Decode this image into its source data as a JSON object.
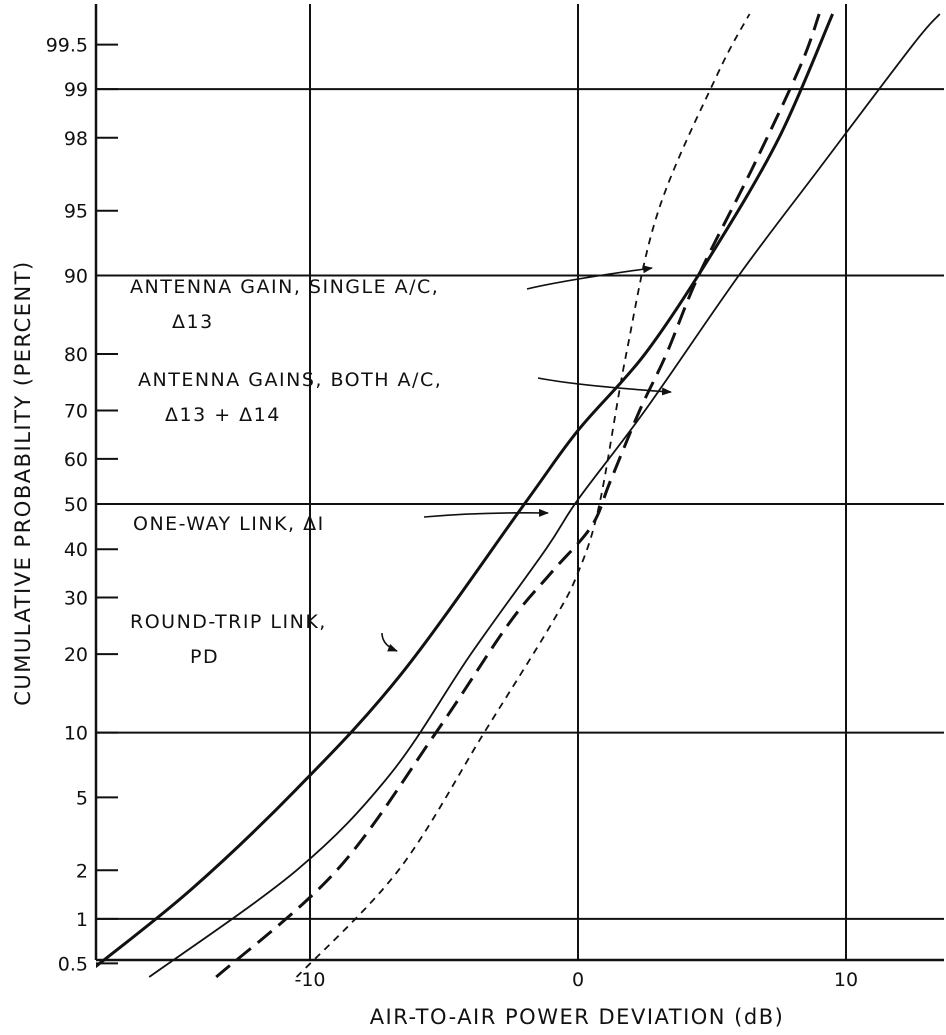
{
  "chart_data": {
    "type": "line",
    "title": "",
    "xlabel": "AIR-TO-AIR POWER DEVIATION (dB)",
    "ylabel": "CUMULATIVE PROBABILITY (PERCENT)",
    "y_scale": "normal-probability",
    "xlim": [
      -18.5,
      13.8
    ],
    "ylim": [
      0.4,
      99.7
    ],
    "grid": true,
    "x_ticks": [
      {
        "value": -10,
        "label": "-10"
      },
      {
        "value": 0,
        "label": "0"
      },
      {
        "value": 10,
        "label": "10"
      }
    ],
    "y_ticks": [
      {
        "value": 0.5,
        "label": "0.5"
      },
      {
        "value": 1,
        "label": "1"
      },
      {
        "value": 2,
        "label": "2"
      },
      {
        "value": 5,
        "label": "5"
      },
      {
        "value": 10,
        "label": "10"
      },
      {
        "value": 20,
        "label": "20"
      },
      {
        "value": 30,
        "label": "30"
      },
      {
        "value": 40,
        "label": "40"
      },
      {
        "value": 50,
        "label": "50"
      },
      {
        "value": 60,
        "label": "60"
      },
      {
        "value": 70,
        "label": "70"
      },
      {
        "value": 80,
        "label": "80"
      },
      {
        "value": 90,
        "label": "90"
      },
      {
        "value": 95,
        "label": "95"
      },
      {
        "value": 98,
        "label": "98"
      },
      {
        "value": 99,
        "label": "99"
      },
      {
        "value": 99.5,
        "label": "99.5"
      }
    ],
    "x_gridlines": [
      -10,
      0,
      10
    ],
    "y_gridlines": [
      1,
      10,
      50,
      90,
      99
    ],
    "series": [
      {
        "style": "thin-dashed",
        "points": [
          {
            "x": -10.5,
            "y": 0.4
          },
          {
            "x": -6.7,
            "y": 2
          },
          {
            "x": -3.5,
            "y": 10
          },
          {
            "x": -1.0,
            "y": 25
          },
          {
            "x": 0.0,
            "y": 35
          },
          {
            "x": 0.8,
            "y": 50
          },
          {
            "x": 1.8,
            "y": 80
          },
          {
            "x": 3.0,
            "y": 95
          },
          {
            "x": 5.2,
            "y": 99.2
          },
          {
            "x": 6.4,
            "y": 99.7
          }
        ]
      },
      {
        "style": "thick-dashed",
        "points": [
          {
            "x": -13.5,
            "y": 0.4
          },
          {
            "x": -9.0,
            "y": 2
          },
          {
            "x": -5.3,
            "y": 10
          },
          {
            "x": -2.6,
            "y": 25
          },
          {
            "x": -1.0,
            "y": 35
          },
          {
            "x": 0.5,
            "y": 45
          },
          {
            "x": 1.2,
            "y": 55
          },
          {
            "x": 2.3,
            "y": 70
          },
          {
            "x": 3.3,
            "y": 80
          },
          {
            "x": 4.5,
            "y": 90
          },
          {
            "x": 6.5,
            "y": 97
          },
          {
            "x": 8.3,
            "y": 99.3
          },
          {
            "x": 9.0,
            "y": 99.7
          }
        ]
      },
      {
        "style": "thin-solid",
        "points": [
          {
            "x": -16.0,
            "y": 0.4
          },
          {
            "x": -10.5,
            "y": 2
          },
          {
            "x": -7.0,
            "y": 6.5
          },
          {
            "x": -4.0,
            "y": 20
          },
          {
            "x": -1.2,
            "y": 40
          },
          {
            "x": 0.0,
            "y": 51
          },
          {
            "x": 2.5,
            "y": 70
          },
          {
            "x": 6.0,
            "y": 90
          },
          {
            "x": 9.0,
            "y": 97
          },
          {
            "x": 12.5,
            "y": 99.5
          },
          {
            "x": 13.5,
            "y": 99.7
          }
        ]
      },
      {
        "style": "thick-solid",
        "points": [
          {
            "x": -18.5,
            "y": 0.4
          },
          {
            "x": -14.5,
            "y": 1.5
          },
          {
            "x": -10.5,
            "y": 5.5
          },
          {
            "x": -6.6,
            "y": 17
          },
          {
            "x": -2.0,
            "y": 50
          },
          {
            "x": 0.0,
            "y": 66
          },
          {
            "x": 2.5,
            "y": 80
          },
          {
            "x": 5.0,
            "y": 92
          },
          {
            "x": 7.5,
            "y": 98
          },
          {
            "x": 9.5,
            "y": 99.7
          }
        ]
      }
    ],
    "annotations": [
      {
        "lines": [
          "ANTENNA GAIN, SINGLE A/C,",
          "Δ13"
        ]
      },
      {
        "lines": [
          "ANTENNA GAINS, BOTH A/C,",
          "Δ13 + Δ14"
        ]
      },
      {
        "lines": [
          "ONE-WAY LINK, ΔI"
        ]
      },
      {
        "lines": [
          "ROUND-TRIP LINK,",
          "PD"
        ]
      }
    ]
  }
}
